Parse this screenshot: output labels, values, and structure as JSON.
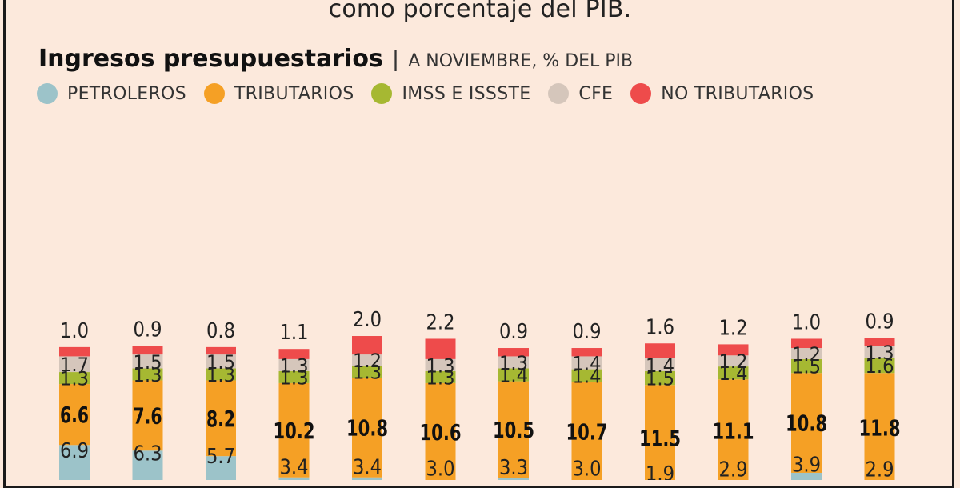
{
  "header": {
    "subtitle": "como porcentaje del PIB."
  },
  "chart_data": {
    "type": "bar",
    "stacked": true,
    "title": "Ingresos presupuestarios",
    "title_unit": "A NOVIEMBRE, % DEL PIB",
    "categories": [
      "",
      "",
      "",
      "",
      "",
      "",
      "",
      "",
      "",
      "",
      "",
      ""
    ],
    "series": [
      {
        "name": "PETROLEROS",
        "color": "#9cc3c9",
        "values": [
          6.9,
          6.3,
          5.7,
          3.4,
          3.4,
          3.0,
          3.3,
          3.0,
          1.9,
          2.9,
          3.9,
          2.9
        ]
      },
      {
        "name": "TRIBUTARIOS",
        "color": "#f5a025",
        "values": [
          6.6,
          7.6,
          8.2,
          10.2,
          10.8,
          10.6,
          10.5,
          10.7,
          11.5,
          11.1,
          10.8,
          11.8
        ]
      },
      {
        "name": "IMSS E ISSSTE",
        "color": "#a6b832",
        "values": [
          1.3,
          1.3,
          1.3,
          1.3,
          1.3,
          1.3,
          1.4,
          1.4,
          1.5,
          1.4,
          1.5,
          1.6
        ]
      },
      {
        "name": "CFE",
        "color": "#d5c6bb",
        "values": [
          1.7,
          1.5,
          1.5,
          1.3,
          1.2,
          1.3,
          1.3,
          1.4,
          1.4,
          1.2,
          1.2,
          1.3
        ]
      },
      {
        "name": "NO TRIBUTARIOS",
        "color": "#ee4b4b",
        "values": [
          1.0,
          0.9,
          0.8,
          1.1,
          2.0,
          2.2,
          0.9,
          0.9,
          1.6,
          1.2,
          1.0,
          0.9
        ]
      }
    ],
    "legend_position": "top-left",
    "grid": false
  }
}
